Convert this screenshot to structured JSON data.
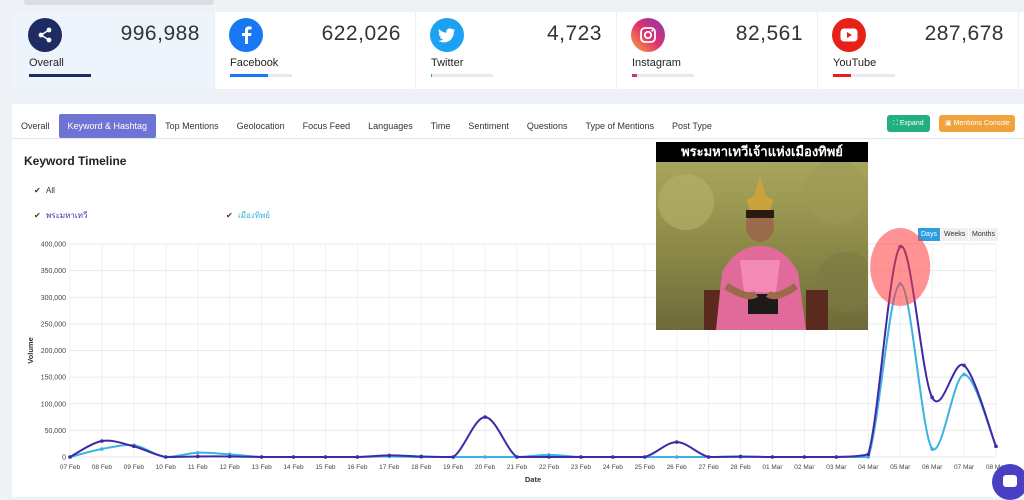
{
  "stats": [
    {
      "label": "Overall",
      "value": "996,988",
      "icon": "share-icon",
      "color": "#1f2b63",
      "fill": 1.0
    },
    {
      "label": "Facebook",
      "value": "622,026",
      "icon": "facebook-icon",
      "color": "#1877f2",
      "fill": 0.62
    },
    {
      "label": "Twitter",
      "value": "4,723",
      "icon": "twitter-icon",
      "color": "#1da1f2",
      "fill": 0.02
    },
    {
      "label": "Instagram",
      "value": "82,561",
      "icon": "instagram-icon",
      "color": "#c13584",
      "fill": 0.08
    },
    {
      "label": "YouTube",
      "value": "287,678",
      "icon": "youtube-icon",
      "color": "#e62117",
      "fill": 0.29
    }
  ],
  "tabs": [
    "Overall",
    "Keyword & Hashtag",
    "Top Mentions",
    "Geolocation",
    "Focus Feed",
    "Languages",
    "Time",
    "Sentiment",
    "Questions",
    "Type of Mentions",
    "Post Type"
  ],
  "active_tab": "Keyword & Hashtag",
  "buttons": {
    "expand": "Expand",
    "console": "Mentions Console"
  },
  "chart_title": "Keyword Timeline",
  "legend": {
    "all": "All",
    "k1": "พระมหาเทวี",
    "k2": "เมืองทิพย์"
  },
  "periods": [
    "Days",
    "Weeks",
    "Months"
  ],
  "active_period": "Days",
  "overlay_caption": "พระมหาเทวีเจ้าแห่งเมืองทิพย์",
  "chart_data": {
    "type": "line",
    "xlabel": "Date",
    "ylabel": "Volume",
    "ylim": [
      0,
      400000
    ],
    "yticks": [
      "0",
      "50,000",
      "100,000",
      "150,000",
      "200,000",
      "250,000",
      "300,000",
      "350,000",
      "400,000"
    ],
    "categories": [
      "07 Feb",
      "08 Feb",
      "09 Feb",
      "10 Feb",
      "11 Feb",
      "12 Feb",
      "13 Feb",
      "14 Feb",
      "15 Feb",
      "16 Feb",
      "17 Feb",
      "18 Feb",
      "19 Feb",
      "20 Feb",
      "21 Feb",
      "22 Feb",
      "23 Feb",
      "24 Feb",
      "25 Feb",
      "26 Feb",
      "27 Feb",
      "28 Feb",
      "01 Mar",
      "02 Mar",
      "03 Mar",
      "04 Mar",
      "05 Mar",
      "06 Mar",
      "07 Mar",
      "08 Mar"
    ],
    "series": [
      {
        "name": "พระมหาเทวี",
        "color": "#3f2aa6",
        "values": [
          0,
          30000,
          20000,
          0,
          1000,
          1000,
          0,
          0,
          0,
          0,
          3000,
          1000,
          0,
          75000,
          0,
          0,
          0,
          0,
          0,
          28000,
          0,
          1000,
          0,
          0,
          0,
          5000,
          395000,
          112000,
          172000,
          20000
        ]
      },
      {
        "name": "เมืองทิพย์",
        "color": "#3bb3e0",
        "values": [
          0,
          15000,
          22000,
          0,
          8000,
          5000,
          0,
          0,
          0,
          0,
          1000,
          0,
          0,
          0,
          0,
          4000,
          0,
          0,
          0,
          0,
          0,
          0,
          0,
          0,
          0,
          0,
          325000,
          15000,
          155000,
          20000
        ]
      }
    ]
  }
}
